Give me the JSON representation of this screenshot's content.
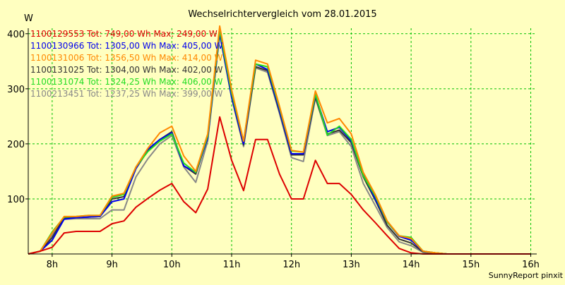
{
  "chart_data": {
    "type": "line",
    "title": "Wechselrichtervergleich vom 28.01.2015",
    "ylabel": "W",
    "xlabel": "",
    "ylim": [
      0,
      410
    ],
    "xlim": [
      7.6,
      16.1
    ],
    "x_ticks": [
      {
        "value": 8,
        "label": "8h"
      },
      {
        "value": 9,
        "label": "9h"
      },
      {
        "value": 10,
        "label": "10h"
      },
      {
        "value": 11,
        "label": "11h"
      },
      {
        "value": 12,
        "label": "12h"
      },
      {
        "value": 13,
        "label": "13h"
      },
      {
        "value": 14,
        "label": "14h"
      },
      {
        "value": 15,
        "label": "15h"
      },
      {
        "value": 16,
        "label": "16h"
      }
    ],
    "y_ticks": [
      100,
      200,
      300,
      400
    ],
    "grid": true,
    "legend_position": "top-left",
    "x": [
      7.6,
      7.8,
      8.0,
      8.2,
      8.4,
      8.6,
      8.8,
      9.0,
      9.2,
      9.4,
      9.6,
      9.8,
      10.0,
      10.2,
      10.4,
      10.6,
      10.8,
      11.0,
      11.2,
      11.4,
      11.6,
      11.8,
      12.0,
      12.2,
      12.4,
      12.6,
      12.8,
      13.0,
      13.2,
      13.4,
      13.6,
      13.8,
      14.0,
      14.2,
      14.4,
      14.6,
      14.8,
      15.0,
      15.2,
      15.4,
      15.6,
      15.8,
      16.0
    ],
    "series": [
      {
        "name": "1100129553 Tot: 749,00 Wh Max: 249,00 W",
        "color": "#dd0000",
        "values": [
          0,
          5,
          12,
          38,
          41,
          41,
          41,
          55,
          60,
          85,
          101,
          116,
          128,
          95,
          75,
          118,
          249,
          170,
          115,
          208,
          208,
          145,
          100,
          100,
          170,
          128,
          128,
          108,
          80,
          57,
          33,
          10,
          2,
          0,
          0,
          0,
          0,
          0,
          0,
          0,
          0,
          0,
          0
        ]
      },
      {
        "name": "1100130966 Tot: 1305,00 Wh Max: 405,00 W",
        "color": "#0000ee",
        "values": [
          0,
          5,
          25,
          63,
          66,
          67,
          68,
          95,
          100,
          155,
          190,
          208,
          220,
          160,
          148,
          210,
          400,
          285,
          200,
          345,
          335,
          260,
          182,
          182,
          288,
          222,
          230,
          205,
          145,
          100,
          58,
          32,
          25,
          5,
          2,
          0,
          0,
          0,
          0,
          0,
          0,
          0,
          0
        ]
      },
      {
        "name": "1100131006 Tot: 1356,50 Wh Max: 414,00 W",
        "color": "#ff8800",
        "values": [
          0,
          5,
          38,
          68,
          68,
          70,
          70,
          105,
          110,
          158,
          192,
          220,
          232,
          178,
          150,
          218,
          414,
          298,
          205,
          352,
          345,
          268,
          188,
          185,
          296,
          238,
          246,
          218,
          148,
          108,
          60,
          33,
          28,
          5,
          2,
          0,
          0,
          0,
          0,
          0,
          0,
          0,
          0
        ]
      },
      {
        "name": "1100131025 Tot: 1304,00 Wh Max: 402,00 W",
        "color": "#333333",
        "values": [
          0,
          5,
          30,
          66,
          66,
          67,
          68,
          100,
          104,
          155,
          188,
          208,
          222,
          160,
          145,
          212,
          402,
          285,
          198,
          340,
          333,
          258,
          180,
          180,
          285,
          218,
          225,
          202,
          140,
          98,
          52,
          27,
          20,
          4,
          2,
          0,
          0,
          0,
          0,
          0,
          0,
          0,
          0
        ]
      },
      {
        "name": "1100131074 Tot: 1324,25 Wh Max: 406,00 W",
        "color": "#22dd22",
        "values": [
          0,
          5,
          40,
          67,
          68,
          70,
          70,
          103,
          108,
          158,
          186,
          205,
          218,
          165,
          148,
          214,
          406,
          292,
          205,
          345,
          340,
          265,
          187,
          185,
          290,
          216,
          232,
          208,
          142,
          105,
          58,
          33,
          30,
          5,
          2,
          0,
          0,
          0,
          0,
          0,
          0,
          0,
          0
        ]
      },
      {
        "name": "1100213451 Tot: 1237,25 Wh Max: 399,00 W",
        "color": "#888888",
        "values": [
          0,
          5,
          35,
          63,
          64,
          64,
          64,
          80,
          80,
          140,
          173,
          200,
          215,
          158,
          130,
          205,
          399,
          283,
          195,
          338,
          330,
          255,
          175,
          168,
          283,
          215,
          222,
          195,
          128,
          88,
          48,
          22,
          15,
          3,
          1,
          0,
          0,
          0,
          0,
          0,
          0,
          0,
          0
        ]
      }
    ],
    "footer": "SunnyReport pinxit"
  }
}
